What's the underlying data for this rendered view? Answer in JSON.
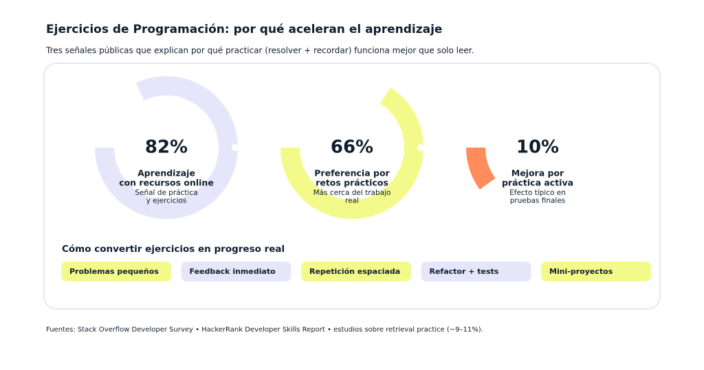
{
  "title": "Ejercicios de Programación: por qué aceleran el aprendizaje",
  "subtitle": "Tres señales públicas que explican por qué practicar (resolver + recordar) funciona mejor que solo leer.",
  "chart_data": {
    "type": "gauge",
    "values": [
      82,
      66,
      10
    ],
    "value_labels": [
      "82%",
      "66%",
      "10%"
    ],
    "labels": [
      [
        "Aprendizaje",
        "con recursos online"
      ],
      [
        "Preferencia por",
        "retos prácticos"
      ],
      [
        "Mejora por",
        "práctica activa"
      ]
    ],
    "notes": [
      [
        "Señal de práctica",
        "y ejercicios"
      ],
      [
        "Más cerca del trabajo",
        "real"
      ],
      [
        "Efecto típico en",
        "pruebas finales"
      ]
    ],
    "colors": [
      "#e6e6fa",
      "#f4fa8a",
      "#ff8c5a"
    ]
  },
  "steps": {
    "title": "Cómo convertir ejercicios en progreso real",
    "items": [
      "Problemas pequeños",
      "Feedback inmediato",
      "Repetición espaciada",
      "Refactor + tests",
      "Mini-proyectos"
    ]
  },
  "footer": "Fuentes: Stack Overflow Developer Survey • HackerRank Developer Skills Report • estudios sobre retrieval practice (~9–11%)."
}
